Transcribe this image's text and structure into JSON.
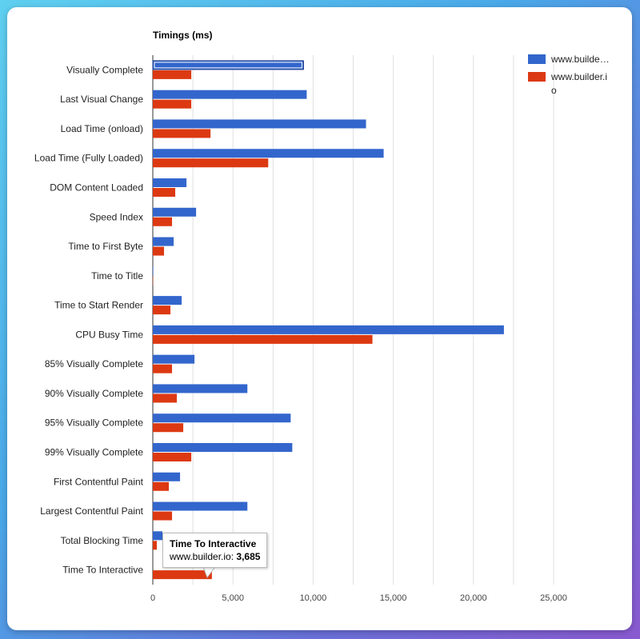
{
  "chart_data": {
    "type": "bar",
    "orientation": "horizontal",
    "title": "Timings (ms)",
    "categories": [
      "Visually Complete",
      "Last Visual Change",
      "Load Time (onload)",
      "Load Time (Fully Loaded)",
      "DOM Content Loaded",
      "Speed Index",
      "Time to First Byte",
      "Time to Title",
      "Time to Start Render",
      "CPU Busy Time",
      "85% Visually Complete",
      "90% Visually Complete",
      "95% Visually Complete",
      "99% Visually Complete",
      "First Contentful Paint",
      "Largest Contentful Paint",
      "Total Blocking Time",
      "Time To Interactive"
    ],
    "series": [
      {
        "name": "www.builde…",
        "color": "#3366cc",
        "values": [
          9400,
          9600,
          13300,
          14400,
          2100,
          2700,
          1300,
          30,
          1800,
          21900,
          2600,
          5900,
          8600,
          8700,
          1700,
          5900,
          600,
          0
        ]
      },
      {
        "name": "www.builder.i o",
        "color": "#dc3912",
        "values": [
          2400,
          2400,
          3600,
          7200,
          1400,
          1200,
          700,
          20,
          1100,
          13700,
          1200,
          1500,
          1900,
          2400,
          1000,
          1200,
          250,
          3685
        ]
      }
    ],
    "legend_labels": [
      [
        "www.builde…"
      ],
      [
        "www.builder.i",
        "o"
      ]
    ],
    "xlim": [
      0,
      25000
    ],
    "xticks": [
      0,
      5000,
      10000,
      15000,
      20000,
      25000
    ],
    "xtick_labels": [
      "0",
      "5,000",
      "10,000",
      "15,000",
      "20,000",
      "25,000"
    ],
    "grid": true,
    "legend": "top-right",
    "highlighted_category": "Visually Complete"
  },
  "tooltip": {
    "title": "Time To Interactive",
    "label": "www.builder.io:",
    "value": "3,685"
  }
}
